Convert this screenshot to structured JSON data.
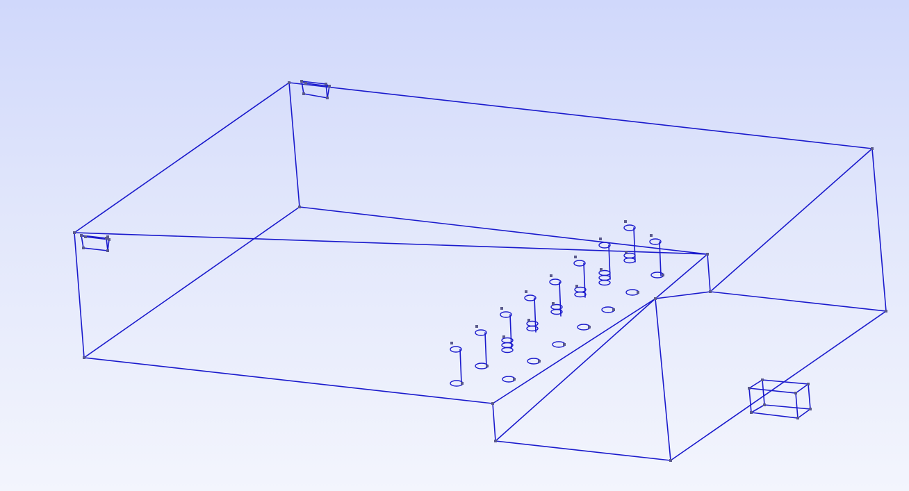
{
  "viewer": {
    "background_top": "#d0d8fb",
    "background_bottom": "#f3f5fd",
    "edge_color": "#1a1acc",
    "vertex_color": "#5a5a8c"
  },
  "model": {
    "main_box": {},
    "inlet_boxes": [
      {},
      {}
    ],
    "outlet_box": {},
    "heater_coils": [
      {},
      {},
      {},
      {},
      {},
      {},
      {},
      {},
      {},
      {},
      {},
      {},
      {},
      {},
      {},
      {},
      {},
      {},
      {},
      {},
      {},
      {},
      {},
      {}
    ]
  }
}
